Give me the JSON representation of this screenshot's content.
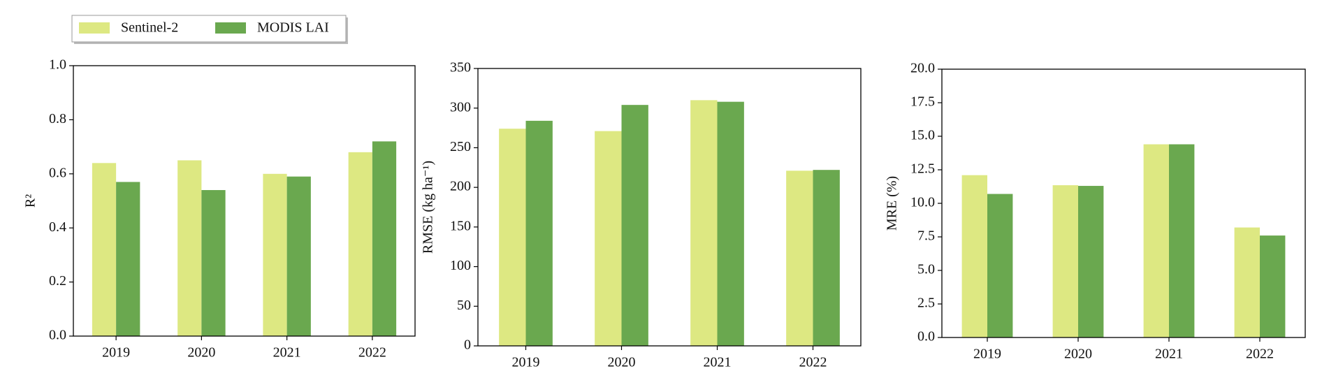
{
  "chart_data": [
    {
      "type": "bar",
      "ylabel": "R²",
      "categories": [
        "2019",
        "2020",
        "2021",
        "2022"
      ],
      "series": [
        {
          "name": "Sentinel-2",
          "color": "#dde882",
          "values": [
            0.64,
            0.65,
            0.6,
            0.68
          ]
        },
        {
          "name": "MODIS LAI",
          "color": "#6aa84f",
          "values": [
            0.57,
            0.54,
            0.59,
            0.72
          ]
        }
      ],
      "ylim": [
        0,
        1
      ],
      "yticks": [
        {
          "value": 0,
          "label": "0.0"
        },
        0.2,
        0.4,
        0.6,
        0.8,
        {
          "value": 1,
          "label": "1.0"
        }
      ]
    },
    {
      "type": "bar",
      "ylabel": "RMSE (kg ha⁻¹)",
      "categories": [
        "2019",
        "2020",
        "2021",
        "2022"
      ],
      "series": [
        {
          "color": "#dde882",
          "values": [
            274,
            271,
            310,
            221
          ]
        },
        {
          "color": "#6aa84f",
          "values": [
            284,
            304,
            308,
            222
          ]
        }
      ],
      "ylim": [
        0,
        350
      ],
      "yticks": [
        0,
        50,
        100,
        150,
        200,
        250,
        300,
        350
      ]
    },
    {
      "type": "bar",
      "ylabel": "MRE (%)",
      "categories": [
        "2019",
        "2020",
        "2021",
        "2022"
      ],
      "series": [
        {
          "color": "#dde882",
          "values": [
            12.1,
            11.35,
            14.4,
            8.2
          ]
        },
        {
          "color": "#6aa84f",
          "values": [
            10.7,
            11.3,
            14.4,
            7.6
          ]
        }
      ],
      "ylim": [
        0,
        20
      ],
      "yticks": [
        {
          "value": 0,
          "label": "0.0"
        },
        2.5,
        {
          "value": 5,
          "label": "5.0"
        },
        7.5,
        {
          "value": 10,
          "label": "10.0"
        },
        12.5,
        {
          "value": 15,
          "label": "15.0"
        },
        17.5,
        {
          "value": 20,
          "label": "20.0"
        }
      ]
    }
  ]
}
